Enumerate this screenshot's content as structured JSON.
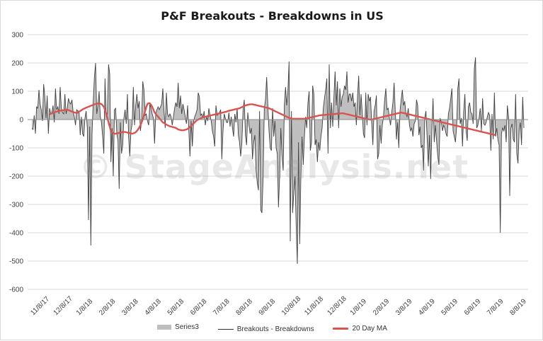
{
  "chart_data": {
    "type": "area",
    "title": "P&F Breakouts - Breakdowns in US",
    "watermark": "© StageAnalysis.net",
    "ylim": [
      -600,
      300
    ],
    "y_ticks": [
      "300",
      "200",
      "100",
      "0",
      "-100",
      "-200",
      "-300",
      "-400",
      "-500",
      "-600"
    ],
    "x_ticks": [
      "11/8/17",
      "12/8/17",
      "1/8/18",
      "2/8/18",
      "3/8/18",
      "4/8/18",
      "5/8/18",
      "6/8/18",
      "7/8/18",
      "8/8/18",
      "9/8/18",
      "10/8/18",
      "11/8/18",
      "12/8/18",
      "1/8/19",
      "2/8/19",
      "3/8/19",
      "4/8/19",
      "5/8/19",
      "6/8/19",
      "7/8/19",
      "8/8/19"
    ],
    "grid": true,
    "legend_position": "bottom",
    "series": [
      {
        "name": "Series3",
        "style": "area",
        "color": "#bfbfbf",
        "values": [
          -30,
          -35,
          15,
          -50,
          45,
          40,
          105,
          55,
          35,
          -5,
          125,
          80,
          5,
          85,
          -50,
          40,
          20,
          25,
          50,
          -10,
          110,
          35,
          45,
          20,
          115,
          40,
          25,
          20,
          90,
          20,
          40,
          75,
          60,
          55,
          70,
          25,
          10,
          -20,
          35,
          30,
          30,
          -55,
          10,
          -50,
          -60,
          5,
          30,
          -30,
          -355,
          -25,
          -445,
          -50,
          60,
          150,
          200,
          20,
          50,
          100,
          10,
          -10,
          -60,
          -120,
          145,
          10,
          20,
          195,
          160,
          -150,
          -30,
          -200,
          35,
          40,
          -50,
          -75,
          -245,
          -10,
          -120,
          -90,
          5,
          35,
          -15,
          90,
          -60,
          -130,
          -40,
          -15,
          115,
          -20,
          50,
          90,
          40,
          65,
          -40,
          -5,
          135,
          105,
          15,
          20,
          -5,
          -20,
          55,
          40,
          20,
          5,
          -85,
          20,
          35,
          45,
          35,
          45,
          55,
          110,
          30,
          -30,
          95,
          20,
          10,
          20,
          10,
          -20,
          10,
          40,
          60,
          45,
          130,
          40,
          85,
          20,
          55,
          35,
          10,
          -15,
          50,
          -35,
          -130,
          -5,
          -95,
          -10,
          10,
          20,
          35,
          95,
          80,
          15,
          20,
          5,
          30,
          -20,
          10,
          -5,
          40,
          15,
          -5,
          -40,
          -60,
          -95,
          50,
          15,
          20,
          25,
          35,
          -140,
          -40,
          20,
          5,
          -10,
          -10,
          25,
          -25,
          10,
          -30,
          -60,
          20,
          -10,
          40,
          -55,
          -80,
          -130,
          -80,
          35,
          70,
          -55,
          -90,
          25,
          -20,
          -50,
          -30,
          -140,
          -80,
          -55,
          -180,
          -220,
          -250,
          30,
          -320,
          -330,
          -200,
          40,
          70,
          150,
          50,
          -40,
          -100,
          -110,
          40,
          -60,
          -5,
          -100,
          -120,
          -310,
          -200,
          -30,
          -130,
          -180,
          50,
          115,
          50,
          100,
          205,
          -430,
          30,
          -330,
          -260,
          -200,
          -370,
          -510,
          -80,
          -440,
          -200,
          -60,
          -160,
          -60,
          10,
          -30,
          60,
          100,
          -110,
          -80,
          120,
          90,
          -90,
          -70,
          -150,
          -80,
          -110,
          -60,
          -30,
          40,
          75,
          105,
          145,
          -120,
          195,
          -30,
          60,
          -25,
          80,
          170,
          50,
          135,
          -30,
          110,
          45,
          80,
          90,
          120,
          105,
          170,
          60,
          90,
          90,
          65,
          95,
          45,
          60,
          -20,
          80,
          155,
          15,
          90,
          25,
          -50,
          -65,
          95,
          -20,
          90,
          65,
          80,
          -10,
          -90,
          30,
          50,
          85,
          -140,
          -120,
          -20,
          -85,
          -20,
          10,
          70,
          110,
          35,
          40,
          5,
          -20,
          25,
          60,
          130,
          30,
          -70,
          -10,
          -100,
          30,
          70,
          105,
          50,
          65,
          20,
          10,
          40,
          -20,
          -40,
          -30,
          -60,
          -15,
          -5,
          70,
          50,
          -55,
          -25,
          -100,
          -90,
          -180,
          5,
          30,
          -65,
          -165,
          -55,
          -210,
          -40,
          75,
          -80,
          -20,
          -75,
          -130,
          -160,
          5,
          -10,
          -40,
          -20,
          -30,
          -50,
          -60,
          20,
          40,
          75,
          110,
          -40,
          -60,
          -80,
          -25,
          110,
          145,
          -15,
          5,
          -95,
          30,
          90,
          -40,
          -75,
          45,
          60,
          25,
          20,
          -15,
          180,
          220,
          -30,
          -20,
          5,
          40,
          -40,
          75,
          -15,
          -20,
          -10,
          10,
          25,
          15,
          -110,
          20,
          -70,
          95,
          -60,
          -30,
          -70,
          -90,
          -400,
          -50,
          -30,
          -40,
          -20,
          -80,
          50,
          10,
          -270,
          -30,
          -15,
          -70,
          -80,
          90,
          -120,
          -155,
          -40,
          -10,
          -90,
          80,
          -30
        ]
      },
      {
        "name": "Breakouts - Breakdowns",
        "style": "line",
        "color": "#404040"
      },
      {
        "name": "20 Day MA",
        "style": "line",
        "color": "#d9534f",
        "values": [
          null,
          null,
          null,
          null,
          null,
          null,
          null,
          null,
          null,
          null,
          null,
          null,
          null,
          null,
          null,
          18,
          20,
          22,
          24,
          25,
          27,
          28,
          30,
          30,
          31,
          32,
          33,
          33,
          34,
          34,
          35,
          33,
          32,
          30,
          28,
          27,
          25,
          24,
          23,
          25,
          28,
          30,
          33,
          36,
          38,
          40,
          42,
          44,
          45,
          47,
          49,
          50,
          52,
          54,
          55,
          56,
          57,
          57,
          56,
          55,
          50,
          45,
          35,
          20,
          5,
          -10,
          -25,
          -40,
          -45,
          -48,
          -50,
          -50,
          -49,
          -48,
          -47,
          -46,
          -45,
          -44,
          -44,
          -44,
          -45,
          -46,
          -47,
          -48,
          -49,
          -50,
          -49,
          -47,
          -45,
          -40,
          -35,
          -28,
          -20,
          -10,
          0,
          15,
          30,
          45,
          55,
          58,
          57,
          52,
          45,
          35,
          25,
          20,
          15,
          10,
          5,
          0,
          -5,
          -10,
          -12,
          -15,
          -18,
          -20,
          -22,
          -24,
          -25,
          -26,
          -27,
          -28,
          -30,
          -32,
          -35,
          -36,
          -37,
          -38,
          -38,
          -37,
          -36,
          -35,
          -33,
          -30,
          -26,
          -22,
          -18,
          -14,
          -10,
          -6,
          -2,
          0,
          2,
          4,
          6,
          8,
          9,
          10,
          11,
          12,
          13,
          14,
          15,
          16,
          17,
          18,
          19,
          20,
          21,
          22,
          23,
          24,
          25,
          26,
          27,
          28,
          30,
          31,
          32,
          33,
          34,
          35,
          36,
          37,
          38,
          39,
          40,
          42,
          44,
          46,
          48,
          50,
          51,
          52,
          53,
          54,
          54,
          54,
          53,
          52,
          51,
          50,
          49,
          48,
          47,
          46,
          45,
          44,
          43,
          42,
          41,
          40,
          38,
          36,
          34,
          32,
          30,
          28,
          26,
          24,
          22,
          20,
          18,
          16,
          14,
          12,
          10,
          8,
          6,
          5,
          4,
          3,
          3,
          3,
          3,
          3,
          3,
          3,
          3,
          3,
          3,
          3,
          3,
          4,
          5,
          6,
          7,
          8,
          9,
          10,
          11,
          12,
          13,
          14,
          15,
          15,
          16,
          16,
          16,
          17,
          17,
          18,
          18,
          18,
          19,
          19,
          19,
          20,
          20,
          21,
          21,
          21,
          22,
          22,
          22,
          21,
          20,
          19,
          18,
          17,
          16,
          15,
          14,
          13,
          12,
          11,
          10,
          9,
          8,
          7,
          6,
          5,
          4,
          3,
          2,
          1,
          0,
          0,
          0,
          1,
          2,
          3,
          4,
          5,
          6,
          7,
          8,
          9,
          10,
          11,
          12,
          13,
          14,
          15,
          16,
          17,
          18,
          19,
          20,
          21,
          22,
          23,
          24,
          25,
          24,
          23,
          22,
          21,
          20,
          19,
          18,
          17,
          16,
          15,
          14,
          13,
          12,
          11,
          10,
          9,
          8,
          7,
          6,
          5,
          4,
          3,
          2,
          1,
          0,
          -1,
          -2,
          -3,
          -4,
          -5,
          -6,
          -7,
          -8,
          -9,
          -10,
          -11,
          -12,
          -13,
          -14,
          -15,
          -16,
          -17,
          -18,
          -19,
          -20,
          -21,
          -22,
          -23,
          -24,
          -25,
          -26,
          -27,
          -28,
          -29,
          -30,
          -31,
          -32,
          -33,
          -34,
          -35,
          -36,
          -37,
          -38,
          -39,
          -40,
          -41,
          -42,
          -43,
          -44,
          -45,
          -46,
          -47,
          -48,
          -49,
          -50,
          -51,
          -52,
          -53,
          -54,
          -55
        ]
      }
    ]
  },
  "legend": {
    "items": [
      "Series3",
      "Breakouts - Breakdowns",
      "20 Day MA"
    ]
  }
}
